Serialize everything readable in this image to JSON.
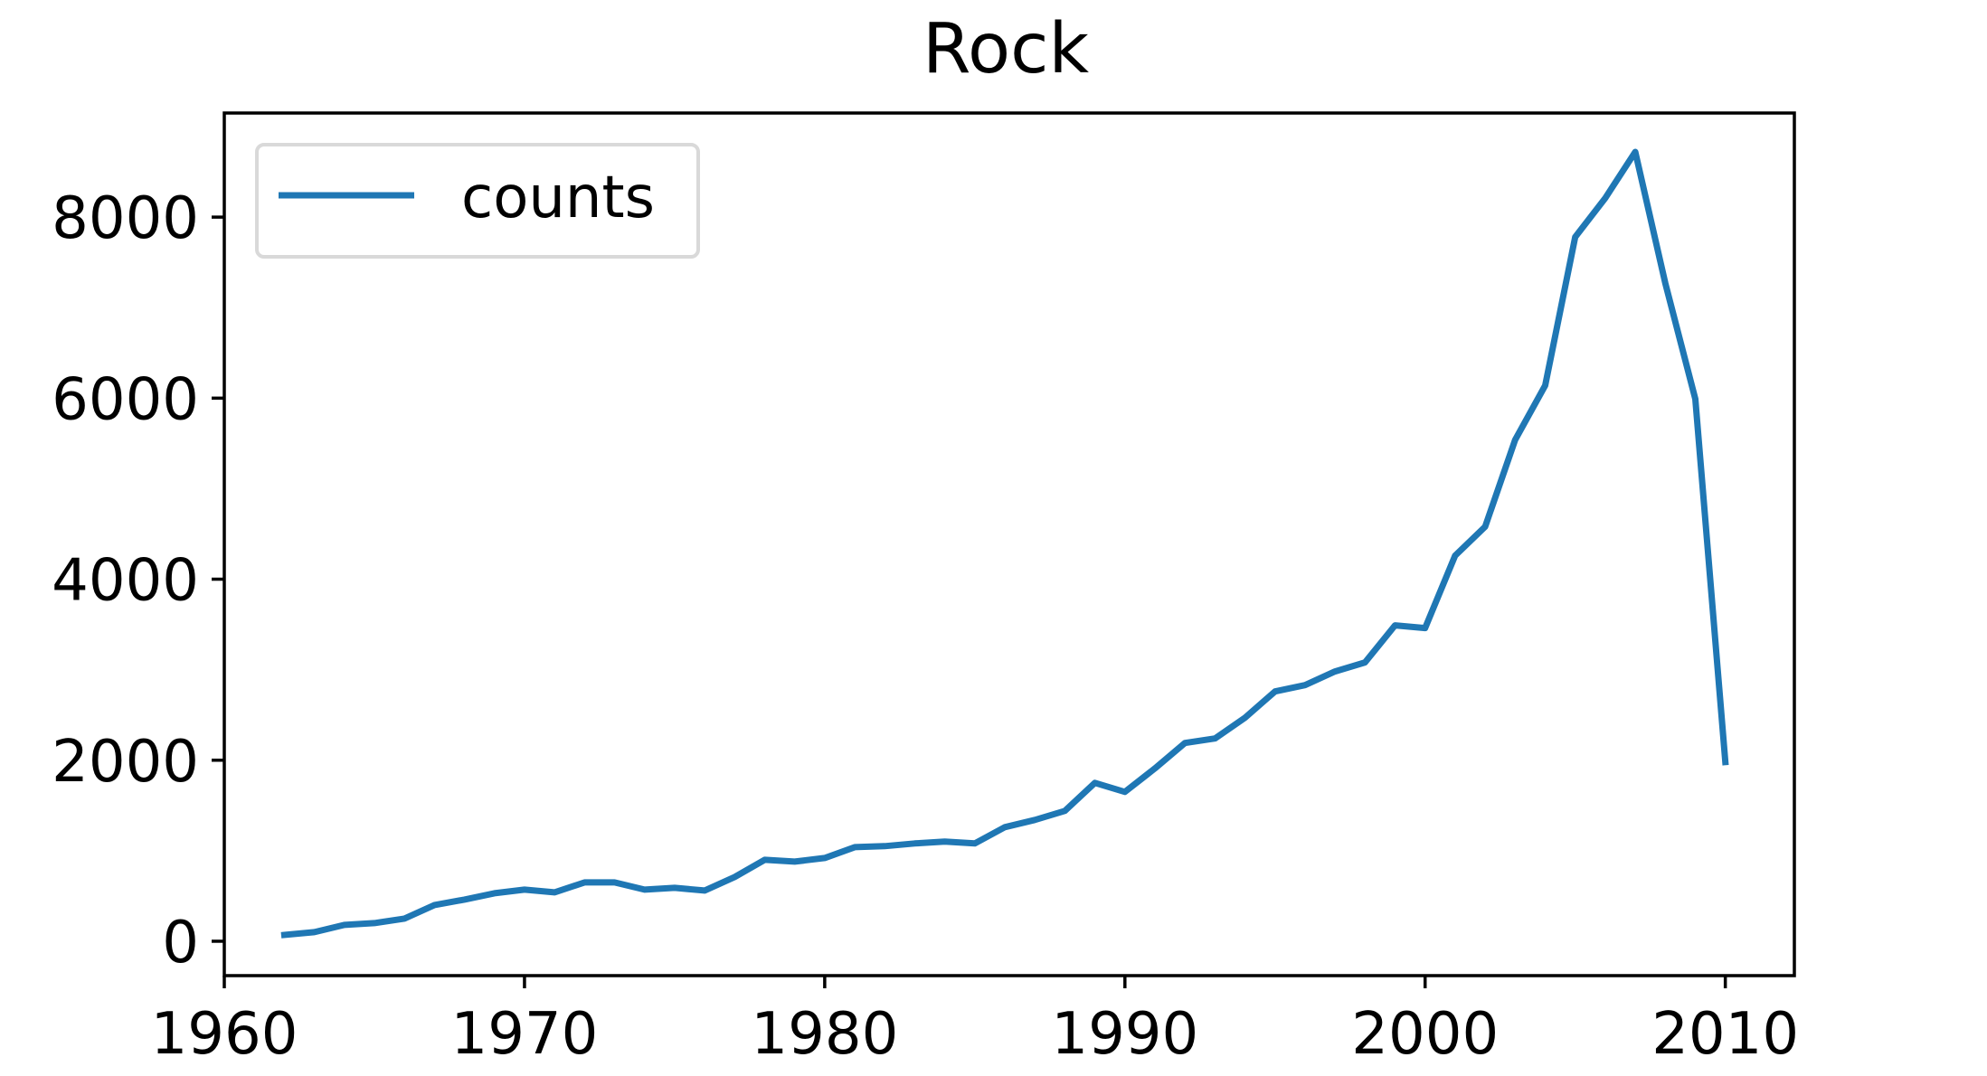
{
  "chart_data": {
    "type": "line",
    "title": "Rock",
    "xlabel": "",
    "ylabel": "",
    "xlim": [
      1960,
      2012.3
    ],
    "ylim": [
      -380,
      9150
    ],
    "xticks": [
      1960,
      1970,
      1980,
      1990,
      2000,
      2010
    ],
    "yticks": [
      0,
      2000,
      4000,
      6000,
      8000
    ],
    "grid": false,
    "legend": "upper-left",
    "series": [
      {
        "name": "counts",
        "color": "#1f77b4",
        "x": [
          1962,
          1963,
          1964,
          1965,
          1966,
          1967,
          1968,
          1969,
          1970,
          1971,
          1972,
          1973,
          1974,
          1975,
          1976,
          1977,
          1978,
          1979,
          1980,
          1981,
          1982,
          1983,
          1984,
          1985,
          1986,
          1987,
          1988,
          1989,
          1990,
          1991,
          1992,
          1993,
          1994,
          1995,
          1996,
          1997,
          1998,
          1999,
          2000,
          2001,
          2002,
          2003,
          2004,
          2005,
          2006,
          2007,
          2008,
          2009,
          2010
        ],
        "y": [
          70,
          100,
          180,
          200,
          250,
          400,
          460,
          530,
          570,
          540,
          650,
          650,
          570,
          590,
          560,
          710,
          900,
          880,
          920,
          1040,
          1050,
          1080,
          1100,
          1080,
          1260,
          1340,
          1440,
          1750,
          1650,
          1910,
          2190,
          2240,
          2470,
          2760,
          2830,
          2980,
          3080,
          3490,
          3460,
          4260,
          4580,
          5540,
          6140,
          7780,
          8210,
          8720,
          7270,
          5990,
          1980
        ]
      }
    ]
  }
}
